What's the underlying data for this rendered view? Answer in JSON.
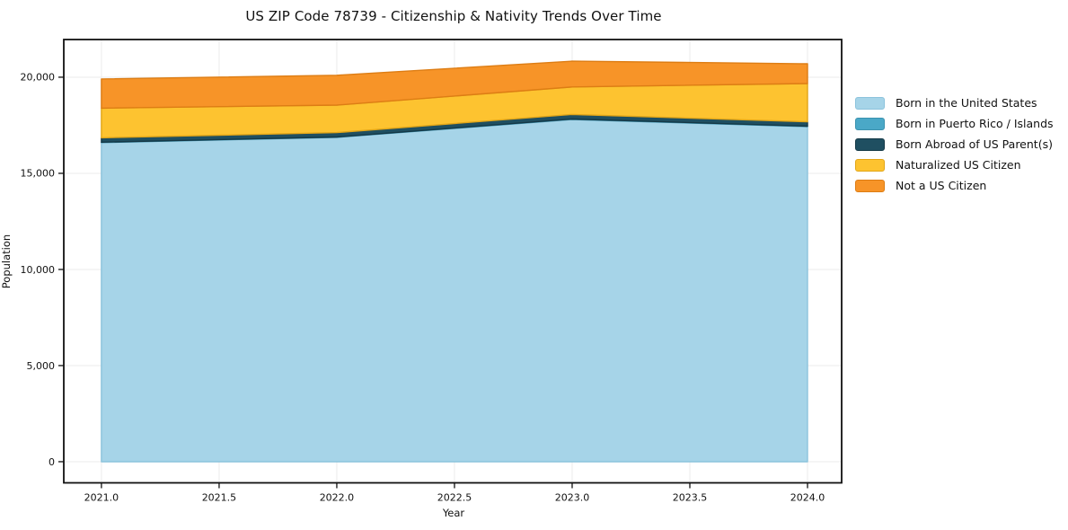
{
  "title": "US ZIP Code 78739 - Citizenship & Nativity Trends Over Time",
  "chart_data": {
    "type": "area",
    "stacked": true,
    "title": "US ZIP Code 78739 - Citizenship & Nativity Trends Over Time",
    "xlabel": "Year",
    "ylabel": "Population",
    "x": [
      2021,
      2022,
      2023,
      2024
    ],
    "series": [
      {
        "name": "Born in the United States",
        "values": [
          16600,
          16870,
          17800,
          17430
        ],
        "color": "#a6d4e8",
        "edge": "#8cc3dc"
      },
      {
        "name": "Born in Puerto Rico / Islands",
        "values": [
          20,
          20,
          25,
          20
        ],
        "color": "#4aa8c7",
        "edge": "#3b92af"
      },
      {
        "name": "Born Abroad of US Parent(s)",
        "values": [
          230,
          230,
          240,
          230
        ],
        "color": "#1f4f61",
        "edge": "#153947"
      },
      {
        "name": "Naturalized US Citizen",
        "values": [
          1540,
          1430,
          1430,
          1990
        ],
        "color": "#fdc330",
        "edge": "#e2a618"
      },
      {
        "name": "Not a US Citizen",
        "values": [
          1520,
          1550,
          1340,
          1030
        ],
        "color": "#f79428",
        "edge": "#dd7d14"
      }
    ],
    "x_ticks": [
      "2021.0",
      "2021.5",
      "2022.0",
      "2022.5",
      "2023.0",
      "2023.5",
      "2024.0"
    ],
    "x_tick_values": [
      2021,
      2021.5,
      2022,
      2022.5,
      2023,
      2023.5,
      2024
    ],
    "y_ticks": [
      "0",
      "5,000",
      "10,000",
      "15,000",
      "20,000"
    ],
    "y_tick_values": [
      0,
      5000,
      10000,
      15000,
      20000
    ],
    "xlim": [
      2020.84,
      2024.145
    ],
    "ylim": [
      -1100,
      21960
    ],
    "grid": true,
    "grid_color": "#ebebeb",
    "spine_color": "#111111",
    "tick_text_color": "#111111",
    "legend_position": "right"
  }
}
